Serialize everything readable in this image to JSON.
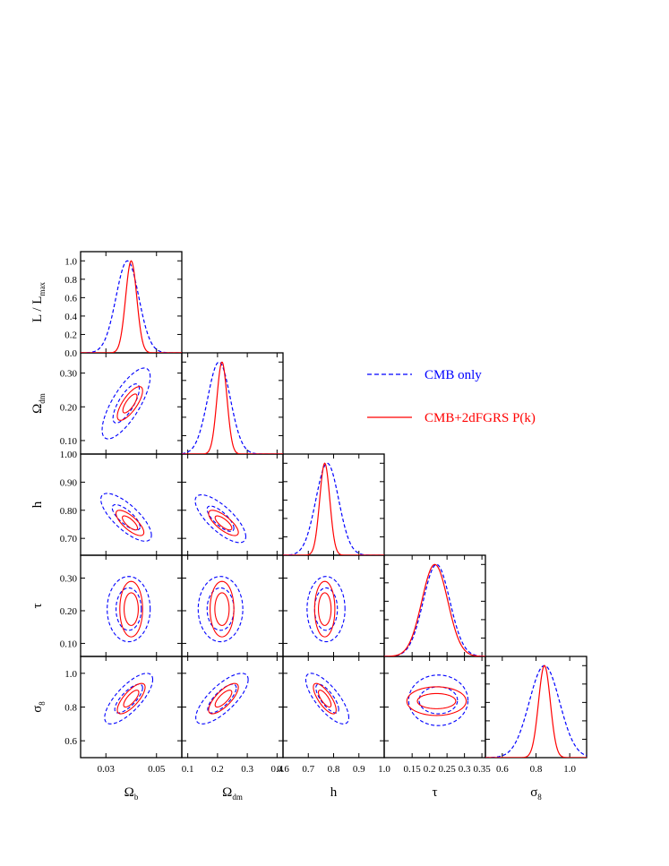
{
  "legend": {
    "entries": [
      {
        "label": "CMB only",
        "color": "#0000ff",
        "dash": true
      },
      {
        "label": "CMB+2dFGRS P(k)",
        "color": "#ff0000",
        "dash": false
      }
    ]
  },
  "chart_data": {
    "type": "scatter",
    "description_kind": "triangle plot of 1D marginalised likelihoods and 2D confidence contours",
    "parameters": [
      {
        "key": "ob",
        "label": "Ω",
        "sub": "b",
        "range": [
          0.02,
          0.06
        ],
        "ticks": [
          0.03,
          0.05
        ],
        "tick_labels": [
          "0.03",
          "0.05"
        ]
      },
      {
        "key": "odm",
        "label": "Ω",
        "sub": "dm",
        "range": [
          0.08,
          0.42
        ],
        "ticks": [
          0.1,
          0.2,
          0.3,
          0.4
        ],
        "tick_labels": [
          "0.1",
          "0.2",
          "0.3",
          "0.4"
        ]
      },
      {
        "key": "h",
        "label": "h",
        "sub": "",
        "range": [
          0.6,
          1.0
        ],
        "ticks": [
          0.6,
          0.7,
          0.8,
          0.9,
          1.0
        ],
        "tick_labels": [
          "0.6",
          "0.7",
          "0.8",
          "0.9",
          "1.0"
        ]
      },
      {
        "key": "tau",
        "label": "τ",
        "sub": "",
        "range": [
          0.07,
          0.36
        ],
        "ticks": [
          0.15,
          0.2,
          0.25,
          0.3,
          0.35
        ],
        "tick_labels": [
          "0.15",
          "0.2",
          "0.25",
          "0.3",
          "0.35"
        ]
      },
      {
        "key": "s8",
        "label": "σ",
        "sub": "8",
        "range": [
          0.5,
          1.1
        ],
        "ticks": [
          0.6,
          0.8,
          1.0
        ],
        "tick_labels": [
          "0.6",
          "0.8",
          "1.0"
        ]
      }
    ],
    "y_axes": [
      {
        "key": "like",
        "label": "L / L",
        "sub": "max",
        "range": [
          0,
          1.1
        ],
        "ticks": [
          0,
          0.2,
          0.4,
          0.6,
          0.8,
          1.0
        ],
        "tick_labels": [
          "0.0",
          "0.2",
          "0.4",
          "0.6",
          "0.8",
          "1.0"
        ]
      },
      {
        "key": "odm",
        "label": "Ω",
        "sub": "dm",
        "range": [
          0.06,
          0.36
        ],
        "ticks": [
          0.1,
          0.2,
          0.3
        ],
        "tick_labels": [
          "0.10",
          "0.20",
          "0.30"
        ]
      },
      {
        "key": "h",
        "label": "h",
        "sub": "",
        "range": [
          0.64,
          1.0
        ],
        "ticks": [
          0.7,
          0.8,
          0.9,
          1.0
        ],
        "tick_labels": [
          "0.70",
          "0.80",
          "0.90",
          "1.00"
        ]
      },
      {
        "key": "tau",
        "label": "τ",
        "sub": "",
        "range": [
          0.06,
          0.37
        ],
        "ticks": [
          0.1,
          0.2,
          0.3
        ],
        "tick_labels": [
          "0.10",
          "0.20",
          "0.30"
        ]
      },
      {
        "key": "s8",
        "label": "σ",
        "sub": "8",
        "range": [
          0.5,
          1.1
        ],
        "ticks": [
          0.6,
          0.8,
          1.0
        ],
        "tick_labels": [
          "0.6",
          "0.8",
          "1.0"
        ]
      }
    ],
    "series": [
      {
        "name": "CMB only",
        "color": "#0000ff",
        "dashed": true,
        "marginals": {
          "ob": {
            "mean": 0.0385,
            "sigma": 0.0045,
            "x": [
              0.038
            ],
            "y": [
              1.0
            ]
          },
          "odm": {
            "mean": 0.205,
            "sigma": 0.038,
            "x": [
              0.205
            ],
            "y": [
              1.0
            ]
          },
          "h": {
            "mean": 0.775,
            "sigma": 0.045,
            "x": [
              0.775
            ],
            "y": [
              1.0
            ]
          },
          "tau": {
            "mean": 0.22,
            "sigma": 0.038,
            "x": [
              0.22
            ],
            "y": [
              1.0
            ]
          },
          "s8": {
            "mean": 0.85,
            "sigma": 0.09,
            "x": [
              0.85
            ],
            "y": [
              1.0
            ]
          }
        },
        "contours": [
          {
            "x": "ob",
            "y": "odm",
            "center": [
              0.038,
              0.21
            ],
            "inner": [
              0.0052,
              0.058,
              0.008
            ],
            "outer": [
              0.0095,
              0.105,
              0.008
            ]
          },
          {
            "x": "ob",
            "y": "h",
            "center": [
              0.038,
              0.775
            ],
            "inner": [
              0.0055,
              0.045,
              -0.0075
            ],
            "outer": [
              0.01,
              0.085,
              -0.0075
            ]
          },
          {
            "x": "odm",
            "y": "h",
            "center": [
              0.21,
              0.77
            ],
            "inner": [
              0.045,
              0.045,
              -0.0075
            ],
            "outer": [
              0.085,
              0.085,
              -0.0075
            ]
          },
          {
            "x": "ob",
            "y": "tau",
            "center": [
              0.039,
              0.205
            ],
            "inner": [
              0.005,
              0.065,
              0.0
            ],
            "outer": [
              0.0085,
              0.1,
              0.0
            ]
          },
          {
            "x": "odm",
            "y": "tau",
            "center": [
              0.21,
              0.205
            ],
            "inner": [
              0.045,
              0.065,
              0.0
            ],
            "outer": [
              0.075,
              0.1,
              0.0
            ]
          },
          {
            "x": "h",
            "y": "tau",
            "center": [
              0.77,
              0.205
            ],
            "inner": [
              0.045,
              0.065,
              0.0
            ],
            "outer": [
              0.075,
              0.1,
              0.0
            ]
          },
          {
            "x": "ob",
            "y": "s8",
            "center": [
              0.039,
              0.85
            ],
            "inner": [
              0.0055,
              0.085,
              0.007
            ],
            "outer": [
              0.0095,
              0.15,
              0.007
            ]
          },
          {
            "x": "odm",
            "y": "s8",
            "center": [
              0.215,
              0.85
            ],
            "inner": [
              0.048,
              0.085,
              0.007
            ],
            "outer": [
              0.088,
              0.15,
              0.007
            ]
          },
          {
            "x": "h",
            "y": "s8",
            "center": [
              0.775,
              0.85
            ],
            "inner": [
              0.045,
              0.085,
              -0.007
            ],
            "outer": [
              0.085,
              0.15,
              -0.007
            ]
          },
          {
            "x": "tau",
            "y": "s8",
            "center": [
              0.225,
              0.84
            ],
            "inner": [
              0.055,
              0.08,
              0.0
            ],
            "outer": [
              0.085,
              0.15,
              0.0
            ]
          }
        ]
      },
      {
        "name": "CMB+2dFGRS P(k)",
        "color": "#ff0000",
        "dashed": false,
        "marginals": {
          "ob": {
            "mean": 0.04,
            "sigma": 0.0022,
            "x": [
              0.04
            ],
            "y": [
              1.0
            ]
          },
          "odm": {
            "mean": 0.215,
            "sigma": 0.017,
            "x": [
              0.215
            ],
            "y": [
              1.0
            ]
          },
          "h": {
            "mean": 0.765,
            "sigma": 0.02,
            "x": [
              0.765
            ],
            "y": [
              1.0
            ]
          },
          "tau": {
            "mean": 0.215,
            "sigma": 0.037,
            "x": [
              0.215
            ],
            "y": [
              1.0
            ]
          },
          "s8": {
            "mean": 0.85,
            "sigma": 0.035,
            "x": [
              0.85
            ],
            "y": [
              1.0
            ]
          }
        },
        "contours": [
          {
            "x": "ob",
            "y": "odm",
            "center": [
              0.0395,
              0.21
            ],
            "inner": [
              0.0028,
              0.028,
              0.008
            ],
            "outer": [
              0.005,
              0.05,
              0.008
            ]
          },
          {
            "x": "ob",
            "y": "h",
            "center": [
              0.0395,
              0.755
            ],
            "inner": [
              0.003,
              0.025,
              -0.0075
            ],
            "outer": [
              0.0055,
              0.045,
              -0.0075
            ]
          },
          {
            "x": "odm",
            "y": "h",
            "center": [
              0.22,
              0.755
            ],
            "inner": [
              0.028,
              0.025,
              -0.0075
            ],
            "outer": [
              0.05,
              0.045,
              -0.0075
            ]
          },
          {
            "x": "ob",
            "y": "tau",
            "center": [
              0.04,
              0.205
            ],
            "inner": [
              0.0028,
              0.05,
              0.0
            ],
            "outer": [
              0.0045,
              0.085,
              0.0
            ]
          },
          {
            "x": "odm",
            "y": "tau",
            "center": [
              0.215,
              0.205
            ],
            "inner": [
              0.024,
              0.05,
              0.0
            ],
            "outer": [
              0.04,
              0.085,
              0.0
            ]
          },
          {
            "x": "h",
            "y": "tau",
            "center": [
              0.765,
              0.205
            ],
            "inner": [
              0.025,
              0.05,
              0.0
            ],
            "outer": [
              0.04,
              0.085,
              0.0
            ]
          },
          {
            "x": "ob",
            "y": "s8",
            "center": [
              0.04,
              0.85
            ],
            "inner": [
              0.003,
              0.05,
              0.007
            ],
            "outer": [
              0.0055,
              0.09,
              0.007
            ]
          },
          {
            "x": "odm",
            "y": "s8",
            "center": [
              0.22,
              0.85
            ],
            "inner": [
              0.028,
              0.05,
              0.007
            ],
            "outer": [
              0.05,
              0.09,
              0.007
            ]
          },
          {
            "x": "h",
            "y": "s8",
            "center": [
              0.765,
              0.85
            ],
            "inner": [
              0.025,
              0.05,
              -0.007
            ],
            "outer": [
              0.045,
              0.09,
              -0.007
            ]
          },
          {
            "x": "tau",
            "y": "s8",
            "center": [
              0.22,
              0.835
            ],
            "inner": [
              0.055,
              0.045,
              0.0
            ],
            "outer": [
              0.085,
              0.085,
              0.0
            ]
          }
        ]
      }
    ]
  }
}
